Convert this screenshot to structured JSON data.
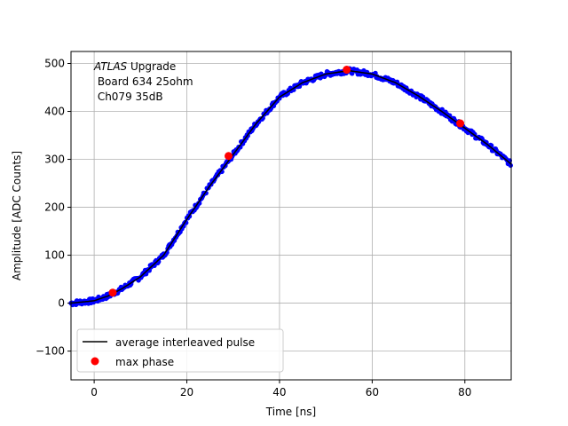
{
  "chart_data": {
    "type": "scatter",
    "title": "",
    "xlabel": "Time [ns]",
    "ylabel": "Amplitude [ADC Counts]",
    "xlim": [
      -5,
      90
    ],
    "ylim": [
      -160,
      525
    ],
    "xticks": [
      0,
      20,
      40,
      60,
      80
    ],
    "yticks": [
      -100,
      0,
      100,
      200,
      300,
      400,
      500
    ],
    "grid": true,
    "legend_placement": "lower-left",
    "annotation": {
      "italic_part": "ATLAS",
      "line1_rest": " Upgrade",
      "line2": " Board 634 25ohm",
      "line3": " Ch079 35dB"
    },
    "colors": {
      "samples": "#0000ff",
      "average": "#000000",
      "max_phase": "#ff0000"
    },
    "series": [
      {
        "name": "average interleaved pulse",
        "kind": "line",
        "x": [
          -5,
          0,
          3,
          6,
          10,
          15,
          20,
          25,
          30,
          35,
          40,
          45,
          50,
          55,
          60,
          65,
          70,
          75,
          80,
          85,
          90
        ],
        "y": [
          0,
          5,
          15,
          30,
          55,
          100,
          175,
          245,
          310,
          375,
          430,
          460,
          478,
          485,
          478,
          460,
          432,
          400,
          365,
          330,
          290
        ]
      },
      {
        "name": "max phase",
        "kind": "points",
        "x": [
          4,
          29,
          54.5,
          79
        ],
        "y": [
          22,
          307,
          487,
          375
        ]
      }
    ]
  },
  "legend": {
    "items": [
      {
        "label": "average interleaved pulse"
      },
      {
        "label": "max phase"
      }
    ]
  }
}
